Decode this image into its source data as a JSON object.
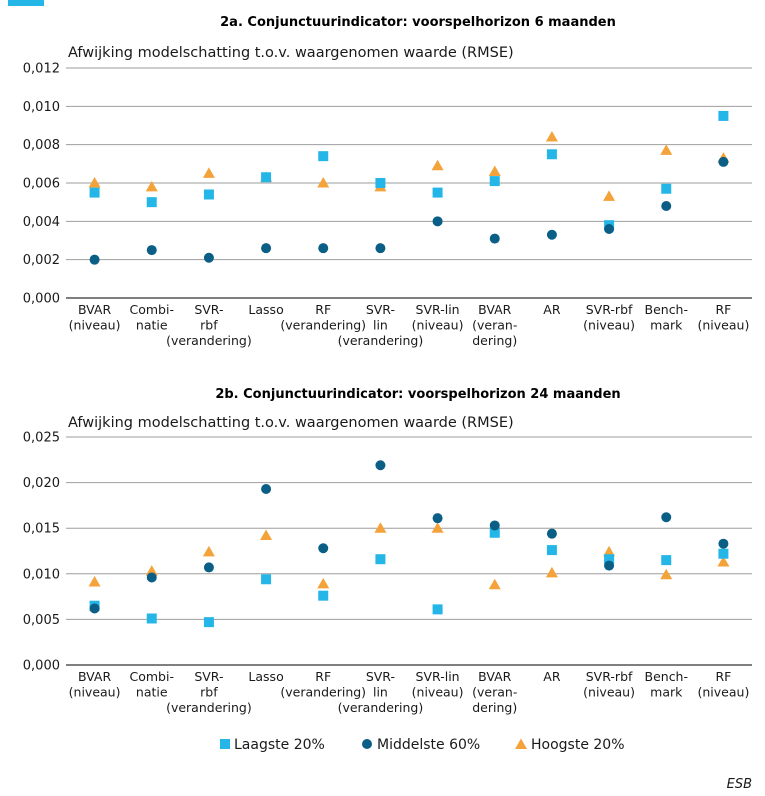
{
  "colors": {
    "laagste": "#25b6e8",
    "middelste": "#0b5e86",
    "hoogste": "#f4a23a",
    "grid": "#9e9e9e",
    "axis": "#333333"
  },
  "legend": {
    "laagste": "Laagste 20%",
    "middelste": "Middelste 60%",
    "hoogste": "Hoogste 20%"
  },
  "source": "ESB",
  "chart_data": [
    {
      "type": "scatter",
      "title": "2a. Conjunctuurindicator: voorspelhorizon 6 maanden",
      "ylabel": "Afwijking modelschatting t.o.v. waargenomen waarde (RMSE)",
      "ylim": [
        0,
        0.012
      ],
      "yticks": [
        "0,000",
        "0,002",
        "0,004",
        "0,006",
        "0,008",
        "0,010",
        "0,012"
      ],
      "categories": [
        [
          "BVAR",
          "(niveau)"
        ],
        [
          "Combi-",
          "natie"
        ],
        [
          "SVR-",
          "rbf",
          "(verandering)"
        ],
        [
          "Lasso"
        ],
        [
          "RF",
          "(verandering)"
        ],
        [
          "SVR-",
          "lin",
          "(verandering)"
        ],
        [
          "SVR-lin",
          "(niveau)"
        ],
        [
          "BVAR",
          "(veran-",
          "dering)"
        ],
        [
          "AR"
        ],
        [
          "SVR-rbf",
          "(niveau)"
        ],
        [
          "Bench-",
          "mark"
        ],
        [
          "RF",
          "(niveau)"
        ]
      ],
      "series": [
        {
          "name": "Laagste 20%",
          "marker": "square",
          "values": [
            0.0055,
            0.005,
            0.0054,
            0.0063,
            0.0074,
            0.006,
            0.0055,
            0.0061,
            0.0075,
            0.0038,
            0.0057,
            0.0095
          ]
        },
        {
          "name": "Middelste 60%",
          "marker": "circle",
          "values": [
            0.002,
            0.0025,
            0.0021,
            0.0026,
            0.0026,
            0.0026,
            0.004,
            0.0031,
            0.0033,
            0.0036,
            0.0048,
            0.0071
          ]
        },
        {
          "name": "Hoogste 20%",
          "marker": "triangle",
          "values": [
            0.006,
            0.0058,
            0.0065,
            0.0063,
            0.006,
            0.0058,
            0.0069,
            0.0066,
            0.0084,
            0.0053,
            0.0077,
            0.0073
          ]
        }
      ]
    },
    {
      "type": "scatter",
      "title": "2b. Conjunctuurindicator: voorspelhorizon 24 maanden",
      "ylabel": "Afwijking modelschatting t.o.v. waargenomen waarde (RMSE)",
      "ylim": [
        0,
        0.025
      ],
      "yticks": [
        "0,000",
        "0,005",
        "0,010",
        "0,015",
        "0,020",
        "0,025"
      ],
      "categories": [
        [
          "BVAR",
          "(niveau)"
        ],
        [
          "Combi-",
          "natie"
        ],
        [
          "SVR-",
          "rbf",
          "(verandering)"
        ],
        [
          "Lasso"
        ],
        [
          "RF",
          "(verandering)"
        ],
        [
          "SVR-",
          "lin",
          "(verandering)"
        ],
        [
          "SVR-lin",
          "(niveau)"
        ],
        [
          "BVAR",
          "(veran-",
          "dering)"
        ],
        [
          "AR"
        ],
        [
          "SVR-rbf",
          "(niveau)"
        ],
        [
          "Bench-",
          "mark"
        ],
        [
          "RF",
          "(niveau)"
        ]
      ],
      "series": [
        {
          "name": "Laagste 20%",
          "marker": "square",
          "values": [
            0.0065,
            0.0051,
            0.0047,
            0.0094,
            0.0076,
            0.0116,
            0.0061,
            0.0145,
            0.0126,
            0.0116,
            0.0115,
            0.0122
          ]
        },
        {
          "name": "Middelste 60%",
          "marker": "circle",
          "values": [
            0.0062,
            0.0096,
            0.0107,
            0.0193,
            0.0128,
            0.0219,
            0.0161,
            0.0153,
            0.0144,
            0.0109,
            0.0162,
            0.0133
          ]
        },
        {
          "name": "Hoogste 20%",
          "marker": "triangle",
          "values": [
            0.0091,
            0.0103,
            0.0124,
            0.0142,
            0.0089,
            0.015,
            0.015,
            0.0088,
            0.0101,
            0.0124,
            0.0099,
            0.0113
          ]
        }
      ]
    }
  ]
}
